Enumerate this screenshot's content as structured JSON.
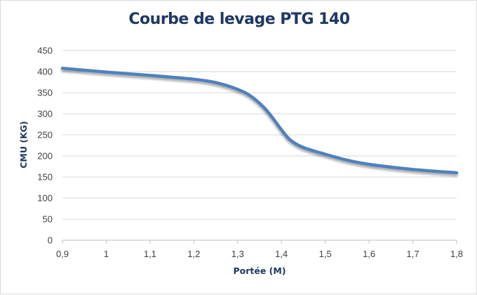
{
  "chart_data": {
    "type": "line",
    "title": "Courbe de levage PTG 140",
    "xlabel": "Portée (M)",
    "ylabel": "CMU (KG)",
    "xlim": [
      0.9,
      1.8
    ],
    "ylim": [
      0,
      450
    ],
    "x_ticks": [
      0.9,
      1.0,
      1.1,
      1.2,
      1.3,
      1.4,
      1.5,
      1.6,
      1.7,
      1.8
    ],
    "x_tick_labels": [
      "0,9",
      "1",
      "1,1",
      "1,2",
      "1,3",
      "1,4",
      "1,5",
      "1,6",
      "1,7",
      "1,8"
    ],
    "y_ticks": [
      0,
      50,
      100,
      150,
      200,
      250,
      300,
      350,
      400,
      450
    ],
    "y_tick_labels": [
      "0",
      "50",
      "100",
      "150",
      "200",
      "250",
      "300",
      "350",
      "400",
      "450"
    ],
    "grid": "horizontal",
    "legend": "none",
    "series": [
      {
        "color": "#4f81bd",
        "x": [
          0.9,
          1.0,
          1.1,
          1.2,
          1.25,
          1.3,
          1.33,
          1.36,
          1.38,
          1.4,
          1.42,
          1.45,
          1.5,
          1.55,
          1.6,
          1.7,
          1.8
        ],
        "y": [
          408,
          399,
          391,
          382,
          374,
          358,
          342,
          315,
          290,
          262,
          238,
          220,
          204,
          190,
          180,
          168,
          160
        ]
      }
    ]
  }
}
